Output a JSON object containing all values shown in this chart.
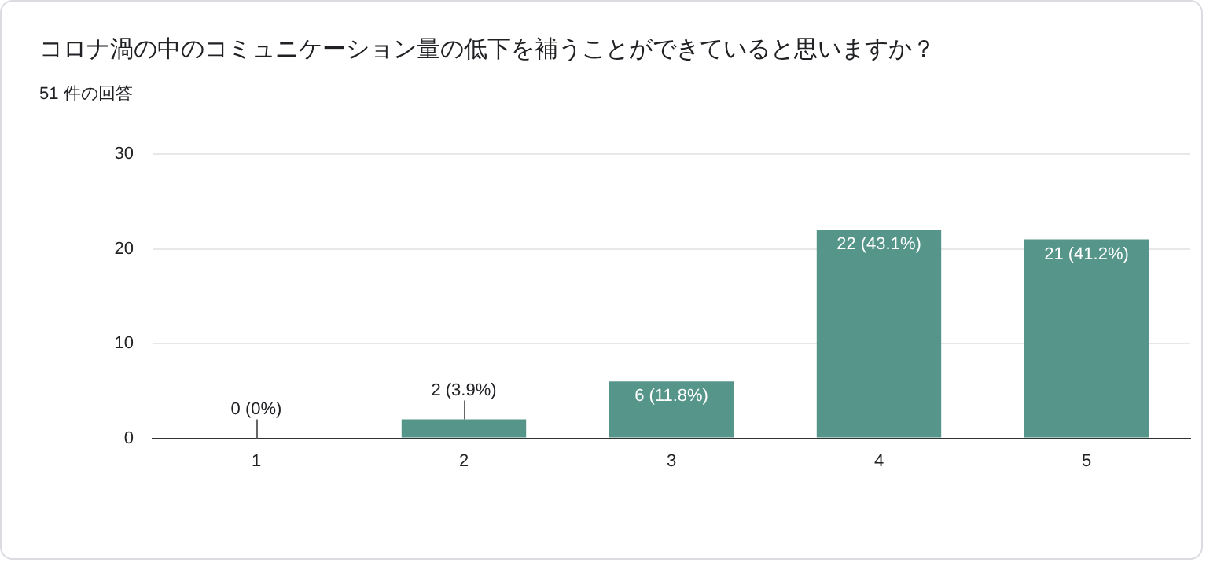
{
  "chart_data": {
    "type": "bar",
    "title": "コロナ渦の中のコミュニケーション量の低下を補うことができていると思いますか？",
    "subtitle": "51 件の回答",
    "categories": [
      "1",
      "2",
      "3",
      "4",
      "5"
    ],
    "values": [
      0,
      2,
      6,
      22,
      21
    ],
    "value_labels": [
      "0 (0%)",
      "2 (3.9%)",
      "6 (11.8%)",
      "22 (43.1%)",
      "21 (41.2%)"
    ],
    "color": "#56968a",
    "ylim": [
      0,
      30
    ],
    "yticks": [
      0,
      10,
      20,
      30
    ],
    "grid": "y",
    "legend": false
  }
}
